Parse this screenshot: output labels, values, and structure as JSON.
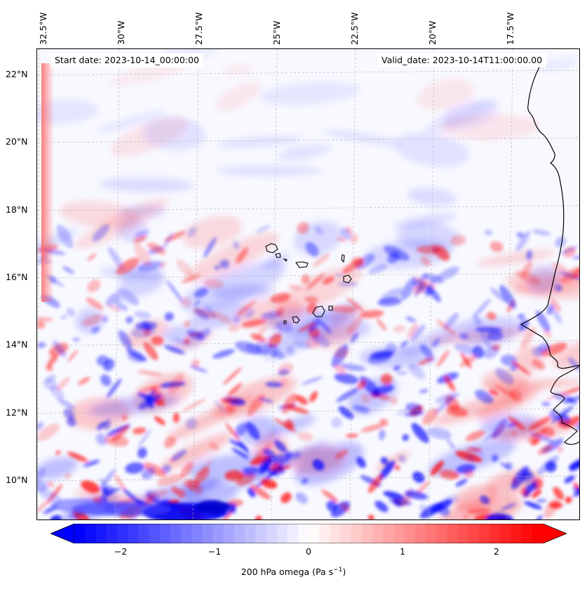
{
  "map": {
    "start_date_label": "Start date: 2023-10-14_00:00:00",
    "valid_date_label": "Valid_date: 2023-10-14T11:00:00.00",
    "longitude_labels": [
      "32.5°W",
      "30°W",
      "27.5°W",
      "25°W",
      "22.5°W",
      "20°W",
      "17.5°W"
    ],
    "latitude_labels": [
      "22°N",
      "20°N",
      "18°N",
      "16°N",
      "14°N",
      "12°N",
      "10°N"
    ],
    "colors": {
      "negative": "#0000ff",
      "zero": "#ffffff",
      "positive": "#ff0000",
      "coastline": "#000000"
    }
  },
  "colorbar": {
    "ticks": [
      "−2",
      "−1",
      "0",
      "1",
      "2"
    ],
    "range": [
      -2.75,
      2.75
    ],
    "title_main": "200 hPa omega (Pa s",
    "title_exp": "−1",
    "title_end": ")"
  }
}
